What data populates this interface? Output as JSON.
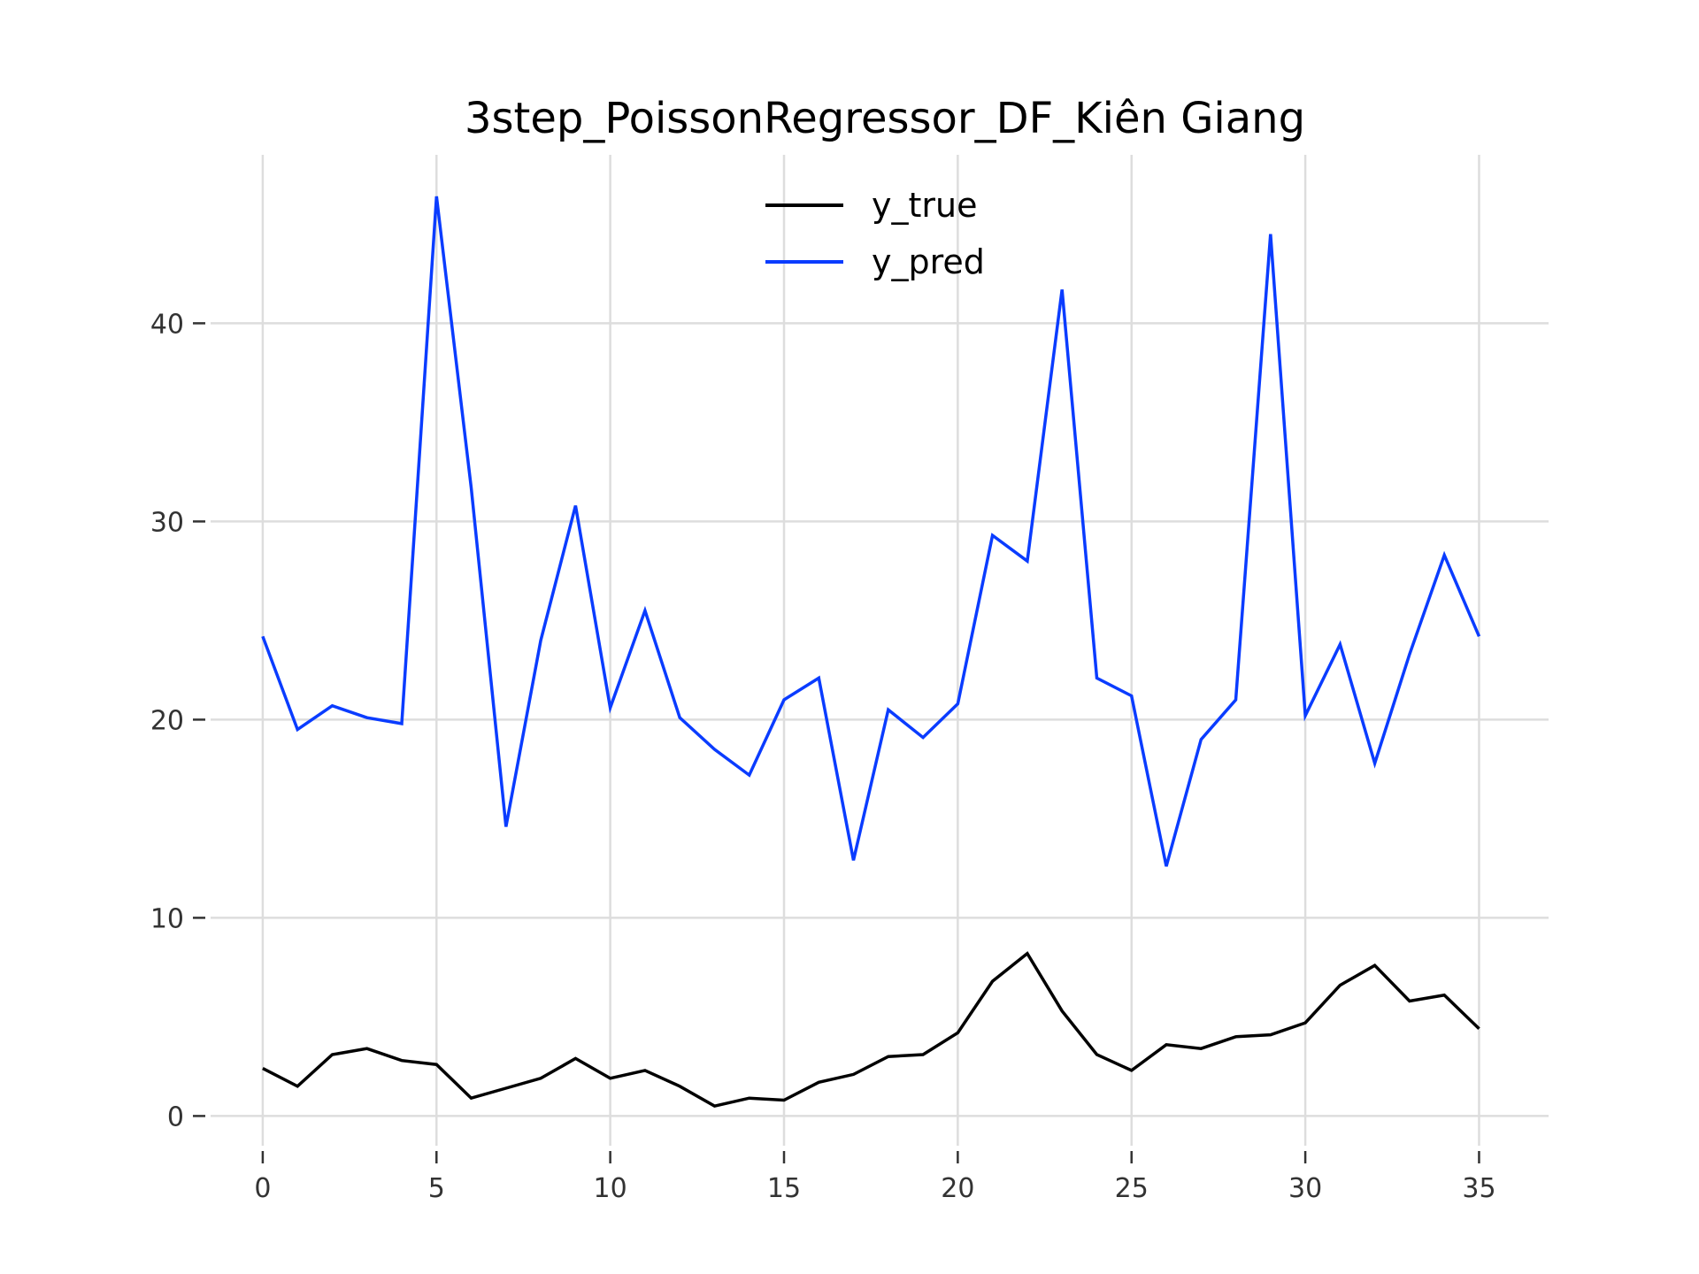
{
  "chart_data": {
    "type": "line",
    "title": "3step_PoissonRegressor_DF_Kiên Giang",
    "xlabel": "",
    "ylabel": "",
    "xlim": [
      -1.5,
      37.0
    ],
    "ylim": [
      -1.5,
      48.5
    ],
    "x_ticks": [
      0,
      5,
      10,
      15,
      20,
      25,
      30,
      35
    ],
    "y_ticks": [
      0,
      10,
      20,
      30,
      40
    ],
    "grid": true,
    "legend_position": "upper center",
    "x": [
      0,
      1,
      2,
      3,
      4,
      5,
      6,
      7,
      8,
      9,
      10,
      11,
      12,
      13,
      14,
      15,
      16,
      17,
      18,
      19,
      20,
      21,
      22,
      23,
      24,
      25,
      26,
      27,
      28,
      29,
      30,
      31,
      32,
      33,
      34,
      35
    ],
    "series": [
      {
        "name": "y_true",
        "color": "#000000",
        "values": [
          2.4,
          1.5,
          3.1,
          3.4,
          2.8,
          2.6,
          0.9,
          1.4,
          1.9,
          2.9,
          1.9,
          2.3,
          1.5,
          0.5,
          0.9,
          0.8,
          1.7,
          2.1,
          3.0,
          3.1,
          4.2,
          6.8,
          8.2,
          5.3,
          3.1,
          2.3,
          3.6,
          3.4,
          4.0,
          4.1,
          4.7,
          6.6,
          7.6,
          5.8,
          6.1,
          4.4
        ]
      },
      {
        "name": "y_pred",
        "color": "#0a3cff",
        "values": [
          24.2,
          19.5,
          20.7,
          20.1,
          19.8,
          46.4,
          31.7,
          14.6,
          24.0,
          30.8,
          20.6,
          25.5,
          20.1,
          18.5,
          17.2,
          21.0,
          22.1,
          12.9,
          20.5,
          19.1,
          20.8,
          29.3,
          28.0,
          41.7,
          22.1,
          21.2,
          12.6,
          19.0,
          21.0,
          44.5,
          20.2,
          23.8,
          17.8,
          23.3,
          28.3,
          24.2
        ]
      }
    ]
  }
}
